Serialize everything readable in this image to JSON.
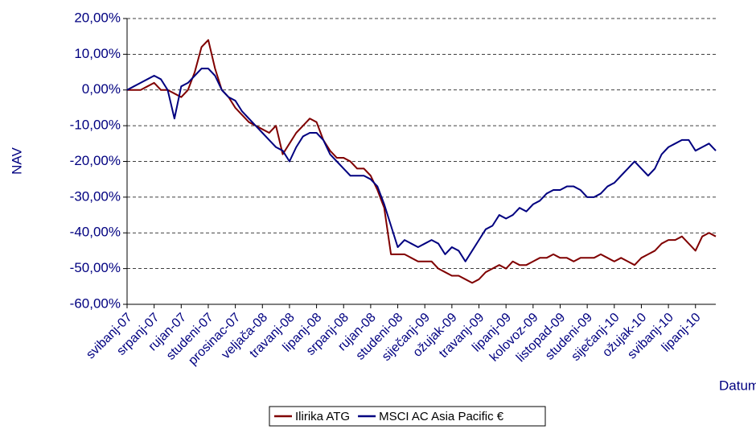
{
  "chart_data": {
    "type": "line",
    "y_label": "NAV",
    "x_label": "Datum",
    "categories": [
      "svibanj-07",
      null,
      null,
      null,
      "srpanj-07",
      null,
      null,
      null,
      "rujan-07",
      null,
      null,
      null,
      "studeni-07",
      null,
      null,
      null,
      "prosinac-07",
      null,
      null,
      null,
      "veljača-08",
      null,
      null,
      null,
      "travanj-08",
      null,
      null,
      null,
      "lipanj-08",
      null,
      null,
      null,
      "srpanj-08",
      null,
      null,
      null,
      "rujan-08",
      null,
      null,
      null,
      "studeni-08",
      null,
      null,
      null,
      "siječanj-09",
      null,
      null,
      null,
      "ožujak-09",
      null,
      null,
      null,
      "travanj-09",
      null,
      null,
      null,
      "lipanj-09",
      null,
      null,
      null,
      "kolovoz-09",
      null,
      null,
      null,
      "listopad-09",
      null,
      null,
      null,
      "studeni-09",
      null,
      null,
      null,
      "siječanj-10",
      null,
      null,
      null,
      "ožujak-10",
      null,
      null,
      null,
      "svibanj-10",
      null,
      null,
      null,
      "lipanj-10",
      null,
      null,
      null
    ],
    "series": [
      {
        "name": "Ilirika ATG",
        "color": "#800000",
        "values": [
          0,
          0,
          0,
          1,
          2,
          0,
          0,
          -1,
          -2,
          0,
          5,
          12,
          14,
          6,
          0,
          -2,
          -5,
          -7,
          -9,
          -10,
          -11,
          -12,
          -10,
          -18,
          -15,
          -12,
          -10,
          -8,
          -9,
          -14,
          -17,
          -19,
          -19,
          -20,
          -22,
          -22,
          -24,
          -28,
          -33,
          -46,
          -46,
          -46,
          -47,
          -48,
          -48,
          -48,
          -50,
          -51,
          -52,
          -52,
          -53,
          -54,
          -53,
          -51,
          -50,
          -49,
          -50,
          -48,
          -49,
          -49,
          -48,
          -47,
          -47,
          -46,
          -47,
          -47,
          -48,
          -47,
          -47,
          -47,
          -46,
          -47,
          -48,
          -47,
          -48,
          -49,
          -47,
          -46,
          -45,
          -43,
          -42,
          -42,
          -41,
          -43,
          -45,
          -41,
          -40,
          -41
        ]
      },
      {
        "name": "MSCI AC Asia Pacific €",
        "color": "#000080",
        "values": [
          0,
          1,
          2,
          3,
          4,
          3,
          0,
          -8,
          1,
          2,
          4,
          6,
          6,
          4,
          0,
          -2,
          -3,
          -6,
          -8,
          -10,
          -12,
          -14,
          -16,
          -17,
          -20,
          -16,
          -13,
          -12,
          -12,
          -14,
          -18,
          -20,
          -22,
          -24,
          -24,
          -24,
          -25,
          -27,
          -32,
          -38,
          -44,
          -42,
          -43,
          -44,
          -43,
          -42,
          -43,
          -46,
          -44,
          -45,
          -48,
          -45,
          -42,
          -39,
          -38,
          -35,
          -36,
          -35,
          -33,
          -34,
          -32,
          -31,
          -29,
          -28,
          -28,
          -27,
          -27,
          -28,
          -30,
          -30,
          -29,
          -27,
          -26,
          -24,
          -22,
          -20,
          -22,
          -24,
          -22,
          -18,
          -16,
          -15,
          -14,
          -14,
          -17,
          -16,
          -15,
          -17
        ]
      }
    ],
    "ylim": [
      -60,
      20
    ],
    "yticks": [
      {
        "value": -60,
        "label": "-60,00%"
      },
      {
        "value": -50,
        "label": "-50,00%"
      },
      {
        "value": -40,
        "label": "-40,00%"
      },
      {
        "value": -30,
        "label": "-30,00%"
      },
      {
        "value": -20,
        "label": "-20,00%"
      },
      {
        "value": -10,
        "label": "-10,00%"
      },
      {
        "value": 0,
        "label": "0,00%"
      },
      {
        "value": 10,
        "label": "10,00%"
      },
      {
        "value": 20,
        "label": "20,00%"
      }
    ],
    "grid": true,
    "legend": "bottom"
  }
}
